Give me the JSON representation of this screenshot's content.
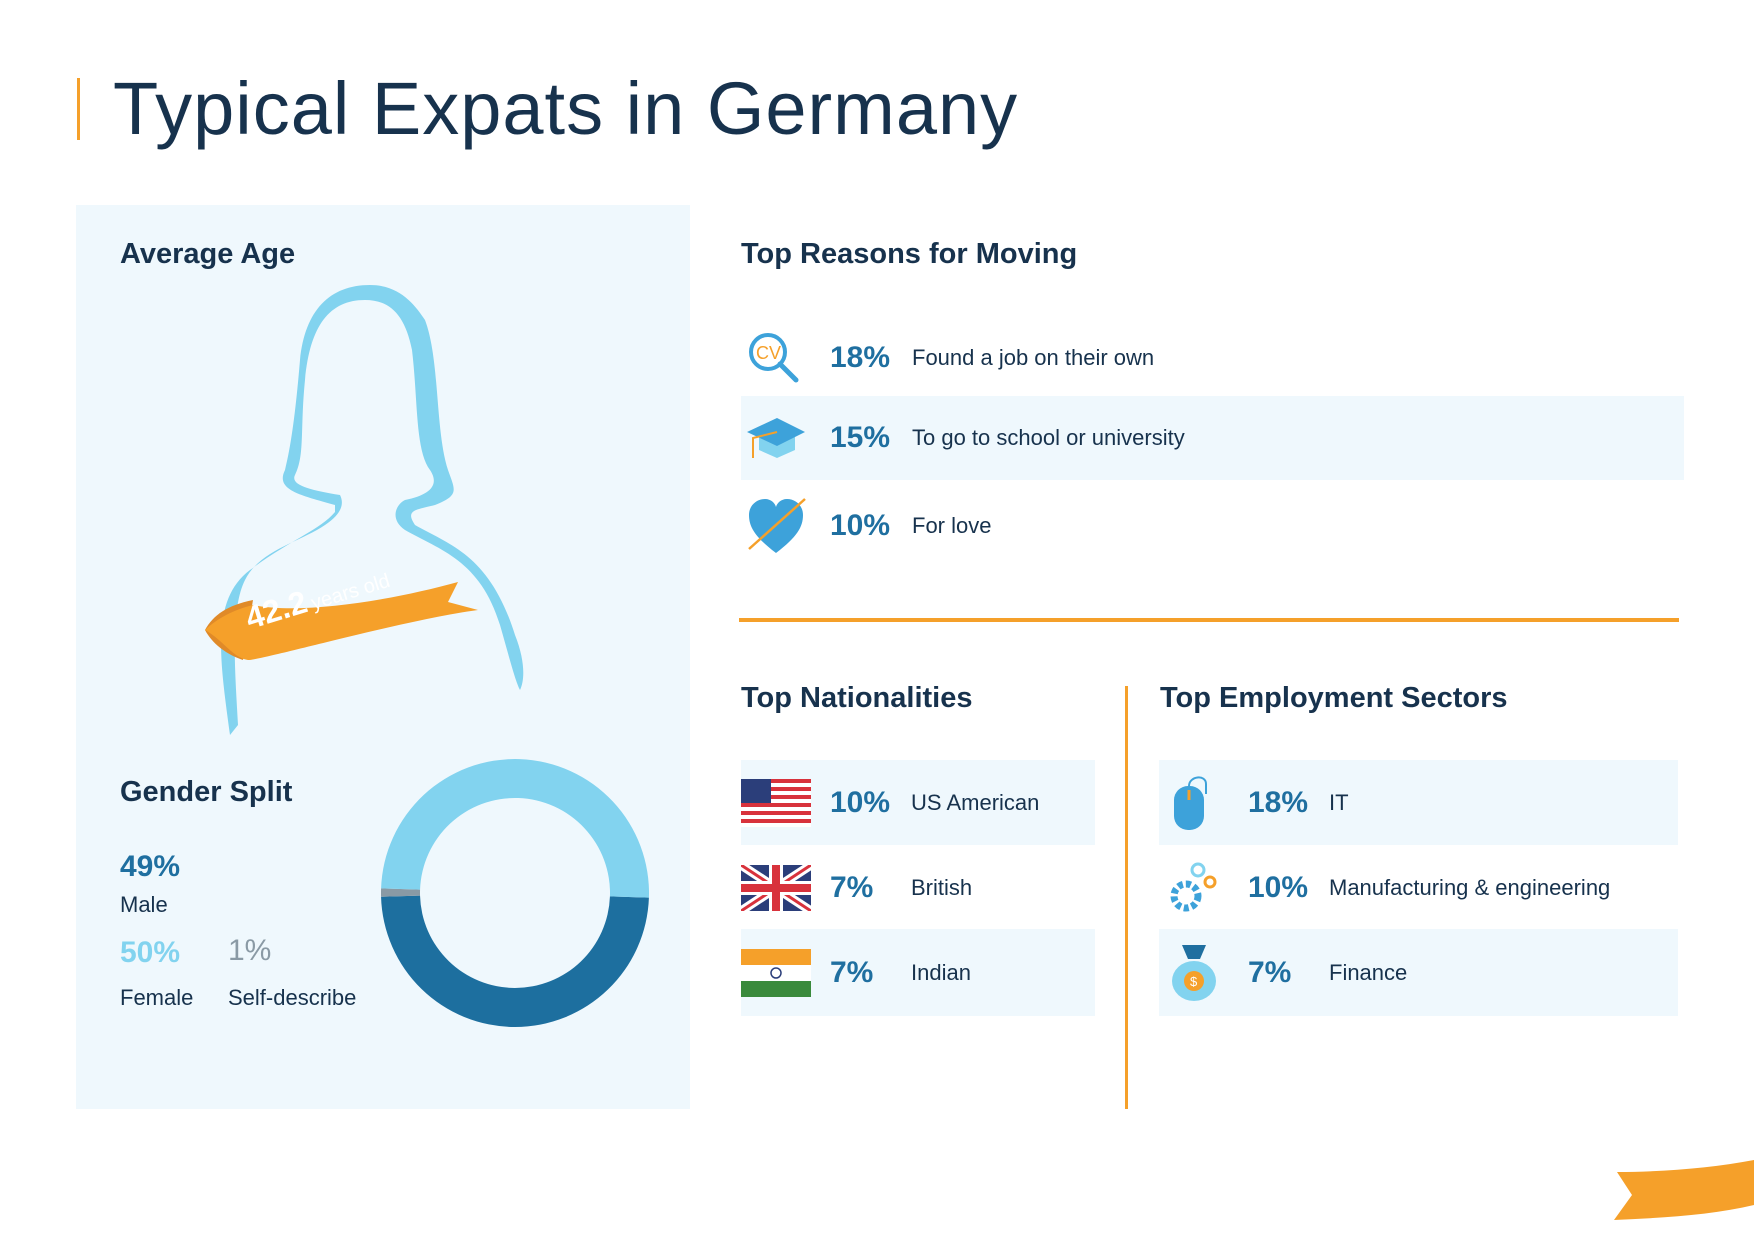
{
  "title": "Typical Expats in Germany",
  "average_age": {
    "heading": "Average Age",
    "value": "42.2",
    "unit": "years old"
  },
  "gender_split": {
    "heading": "Gender Split",
    "male": {
      "pct": "49%",
      "label": "Male",
      "value": 49,
      "color": "#1d6f9f"
    },
    "female": {
      "pct": "50%",
      "label": "Female",
      "value": 50,
      "color": "#82d3ef"
    },
    "self": {
      "pct": "1%",
      "label": "Self-describe",
      "value": 1,
      "color": "#8a9aa5"
    }
  },
  "reasons": {
    "heading": "Top Reasons for Moving",
    "items": [
      {
        "icon": "cv-search-icon",
        "pct": "18%",
        "label": "Found a job on their own"
      },
      {
        "icon": "graduation-cap-icon",
        "pct": "15%",
        "label": "To go to school or university"
      },
      {
        "icon": "heart-arrow-icon",
        "pct": "10%",
        "label": "For love"
      }
    ]
  },
  "nationalities": {
    "heading": "Top Nationalities",
    "items": [
      {
        "icon": "us-flag-icon",
        "pct": "10%",
        "label": "US American"
      },
      {
        "icon": "uk-flag-icon",
        "pct": "7%",
        "label": "British"
      },
      {
        "icon": "india-flag-icon",
        "pct": "7%",
        "label": "Indian"
      }
    ]
  },
  "sectors": {
    "heading": "Top Employment Sectors",
    "items": [
      {
        "icon": "mouse-icon",
        "pct": "18%",
        "label": "IT"
      },
      {
        "icon": "gears-icon",
        "pct": "10%",
        "label": "Manufacturing & engineering"
      },
      {
        "icon": "money-bag-icon",
        "pct": "7%",
        "label": "Finance"
      }
    ]
  },
  "colors": {
    "accent": "#f5a02a",
    "navy": "#17324d",
    "blue": "#1f6fa0",
    "light_blue": "#82d3ef",
    "panel": "#eff8fd"
  }
}
